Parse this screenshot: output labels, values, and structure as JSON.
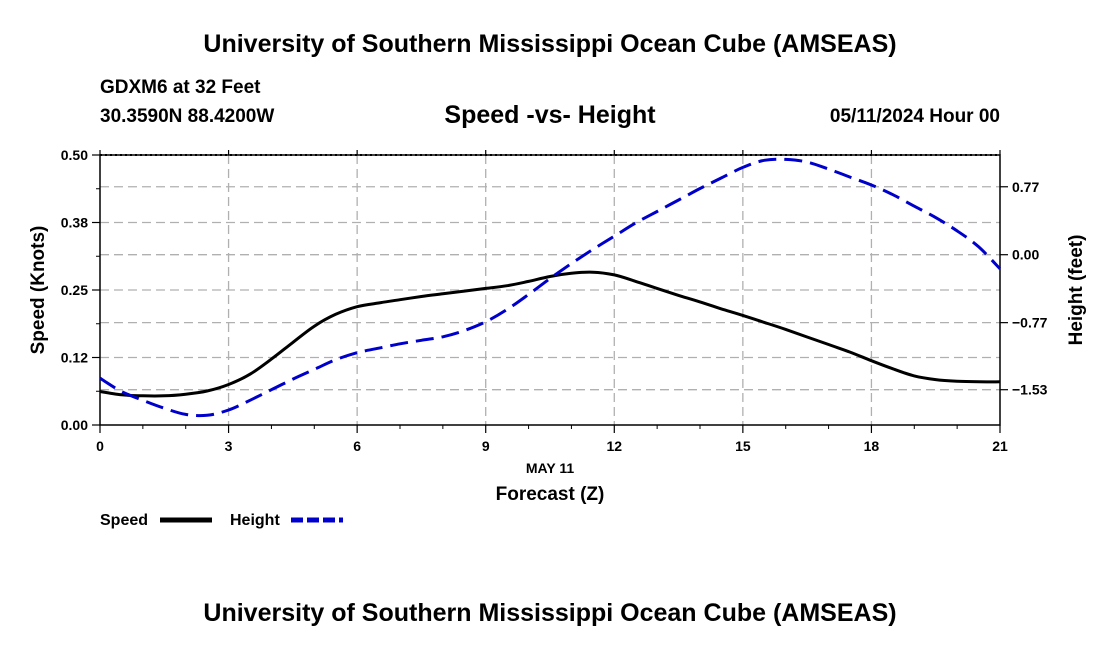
{
  "header": {
    "title": "University of Southern Mississippi Ocean Cube (AMSEAS)",
    "station": "GDXM6 at 32 Feet",
    "coords": "30.3590N  88.4200W",
    "chart_title": "Speed -vs- Height",
    "datetime": "05/11/2024 Hour 00"
  },
  "footer": {
    "title": "University of Southern Mississippi Ocean Cube (AMSEAS)"
  },
  "colors": {
    "speed": "#000000",
    "height": "#0000cc",
    "grid": "#b0b0b0"
  },
  "chart_data": {
    "type": "line",
    "title": "Speed -vs- Height",
    "xlabel": "Forecast (Z)",
    "xdate_label": "MAY 11",
    "ylabel_left": "Speed (Knots)",
    "ylabel_right": "Height (feet)",
    "xlim": [
      0,
      21
    ],
    "ylim_left": [
      0,
      0.5
    ],
    "ylim_right": [
      -1.93,
      1.13
    ],
    "x_ticks": [
      0,
      3,
      6,
      9,
      12,
      15,
      18,
      21
    ],
    "x_tick_labels": [
      "0",
      "3",
      "6",
      "9",
      "12",
      "15",
      "18",
      "21"
    ],
    "left_ticks": [
      0,
      0.125,
      0.25,
      0.375,
      0.5
    ],
    "left_tick_labels": [
      "0.00",
      "0.12",
      "0.25",
      "0.38",
      "0.50"
    ],
    "right_ticks": [
      0.77,
      0,
      -0.77,
      -1.53
    ],
    "right_tick_labels": [
      "0.77",
      "0.00",
      "−0.77",
      "−1.53"
    ],
    "grid": true,
    "legend": [
      "Speed",
      "Height"
    ],
    "series": [
      {
        "name": "Speed",
        "axis": "left",
        "style": "solid",
        "x": [
          0,
          0.5,
          1,
          1.5,
          2,
          2.5,
          3,
          3.5,
          4,
          4.5,
          5,
          5.5,
          6,
          6.5,
          7,
          7.5,
          8,
          8.5,
          9,
          9.5,
          10,
          10.5,
          11,
          11.5,
          12,
          12.5,
          13,
          13.5,
          14,
          14.5,
          15,
          15.5,
          16,
          16.5,
          17,
          17.5,
          18,
          18.5,
          19,
          19.5,
          20,
          20.5,
          21
        ],
        "values": [
          0.062,
          0.056,
          0.054,
          0.054,
          0.057,
          0.063,
          0.075,
          0.094,
          0.122,
          0.153,
          0.183,
          0.205,
          0.219,
          0.226,
          0.232,
          0.238,
          0.243,
          0.248,
          0.253,
          0.258,
          0.266,
          0.275,
          0.281,
          0.283,
          0.278,
          0.266,
          0.253,
          0.24,
          0.228,
          0.215,
          0.203,
          0.19,
          0.177,
          0.163,
          0.149,
          0.135,
          0.119,
          0.104,
          0.091,
          0.084,
          0.081,
          0.08,
          0.08
        ]
      },
      {
        "name": "Height",
        "axis": "right",
        "style": "dashed",
        "x": [
          0,
          0.5,
          1,
          1.5,
          2,
          2.5,
          3,
          3.5,
          4,
          4.5,
          5,
          5.5,
          6,
          6.5,
          7,
          7.5,
          8,
          8.5,
          9,
          9.5,
          10,
          10.5,
          11,
          11.5,
          12,
          12.5,
          13,
          13.5,
          14,
          14.5,
          15,
          15.5,
          16,
          16.5,
          17,
          17.5,
          18,
          18.5,
          19,
          19.5,
          20,
          20.5,
          21
        ],
        "values": [
          -1.4,
          -1.55,
          -1.65,
          -1.74,
          -1.81,
          -1.82,
          -1.76,
          -1.65,
          -1.53,
          -1.41,
          -1.3,
          -1.19,
          -1.11,
          -1.06,
          -1.01,
          -0.97,
          -0.93,
          -0.86,
          -0.76,
          -0.62,
          -0.45,
          -0.27,
          -0.1,
          0.06,
          0.21,
          0.36,
          0.49,
          0.62,
          0.75,
          0.87,
          0.99,
          1.07,
          1.08,
          1.05,
          0.97,
          0.88,
          0.79,
          0.68,
          0.55,
          0.42,
          0.27,
          0.09,
          -0.16
        ]
      }
    ]
  }
}
